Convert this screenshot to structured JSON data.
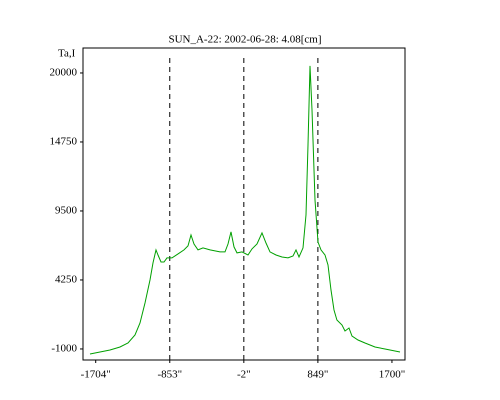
{
  "chart_data": {
    "type": "line",
    "title": "SUN_A-22: 2002-06-28: 4.08[cm]",
    "ylabel": "Ta,I",
    "x": [
      -1770,
      -1655,
      -1540,
      -1425,
      -1333,
      -1253,
      -1195,
      -1138,
      -1080,
      -1046,
      -1011,
      -988,
      -954,
      -919,
      -885,
      -827,
      -758,
      -689,
      -644,
      -609,
      -575,
      -529,
      -471,
      -391,
      -276,
      -218,
      -184,
      -149,
      -115,
      -81,
      -23,
      46,
      92,
      149,
      207,
      253,
      299,
      368,
      437,
      506,
      563,
      597,
      632,
      678,
      712,
      735,
      758,
      781,
      816,
      850,
      885,
      931,
      965,
      1000,
      1034,
      1068,
      1126,
      1160,
      1206,
      1241,
      1310,
      1390,
      1505,
      1620,
      1792
    ],
    "series": [
      {
        "color": "#00a000",
        "values": [
          -1380,
          -1228,
          -1076,
          -848,
          -544,
          65,
          979,
          2500,
          4250,
          5545,
          6534,
          6153,
          5620,
          5620,
          5925,
          5925,
          6230,
          6534,
          6840,
          7675,
          6990,
          6534,
          6686,
          6534,
          6382,
          6382,
          6990,
          7904,
          6762,
          6306,
          6382,
          6153,
          6610,
          6990,
          7828,
          7066,
          6382,
          6153,
          6000,
          5925,
          6077,
          6534,
          6000,
          6686,
          9197,
          14524,
          20536,
          17190,
          10338,
          7142,
          6534,
          6153,
          5392,
          3490,
          1968,
          1207,
          826,
          370,
          598,
          -11,
          -315,
          -543,
          -848,
          -1000,
          -1228
        ]
      }
    ],
    "xlim": [
      -1850,
      1850
    ],
    "xticks": [
      {
        "value": -1704,
        "label": "-1704\""
      },
      {
        "value": -853,
        "label": "-853\""
      },
      {
        "value": -2,
        "label": "-2\""
      },
      {
        "value": 849,
        "label": "849\""
      },
      {
        "value": 1700,
        "label": "1700\""
      }
    ],
    "ylim": [
      -1840,
      21900
    ],
    "yticks": [
      -1000,
      4250,
      9500,
      14750,
      20000
    ]
  }
}
